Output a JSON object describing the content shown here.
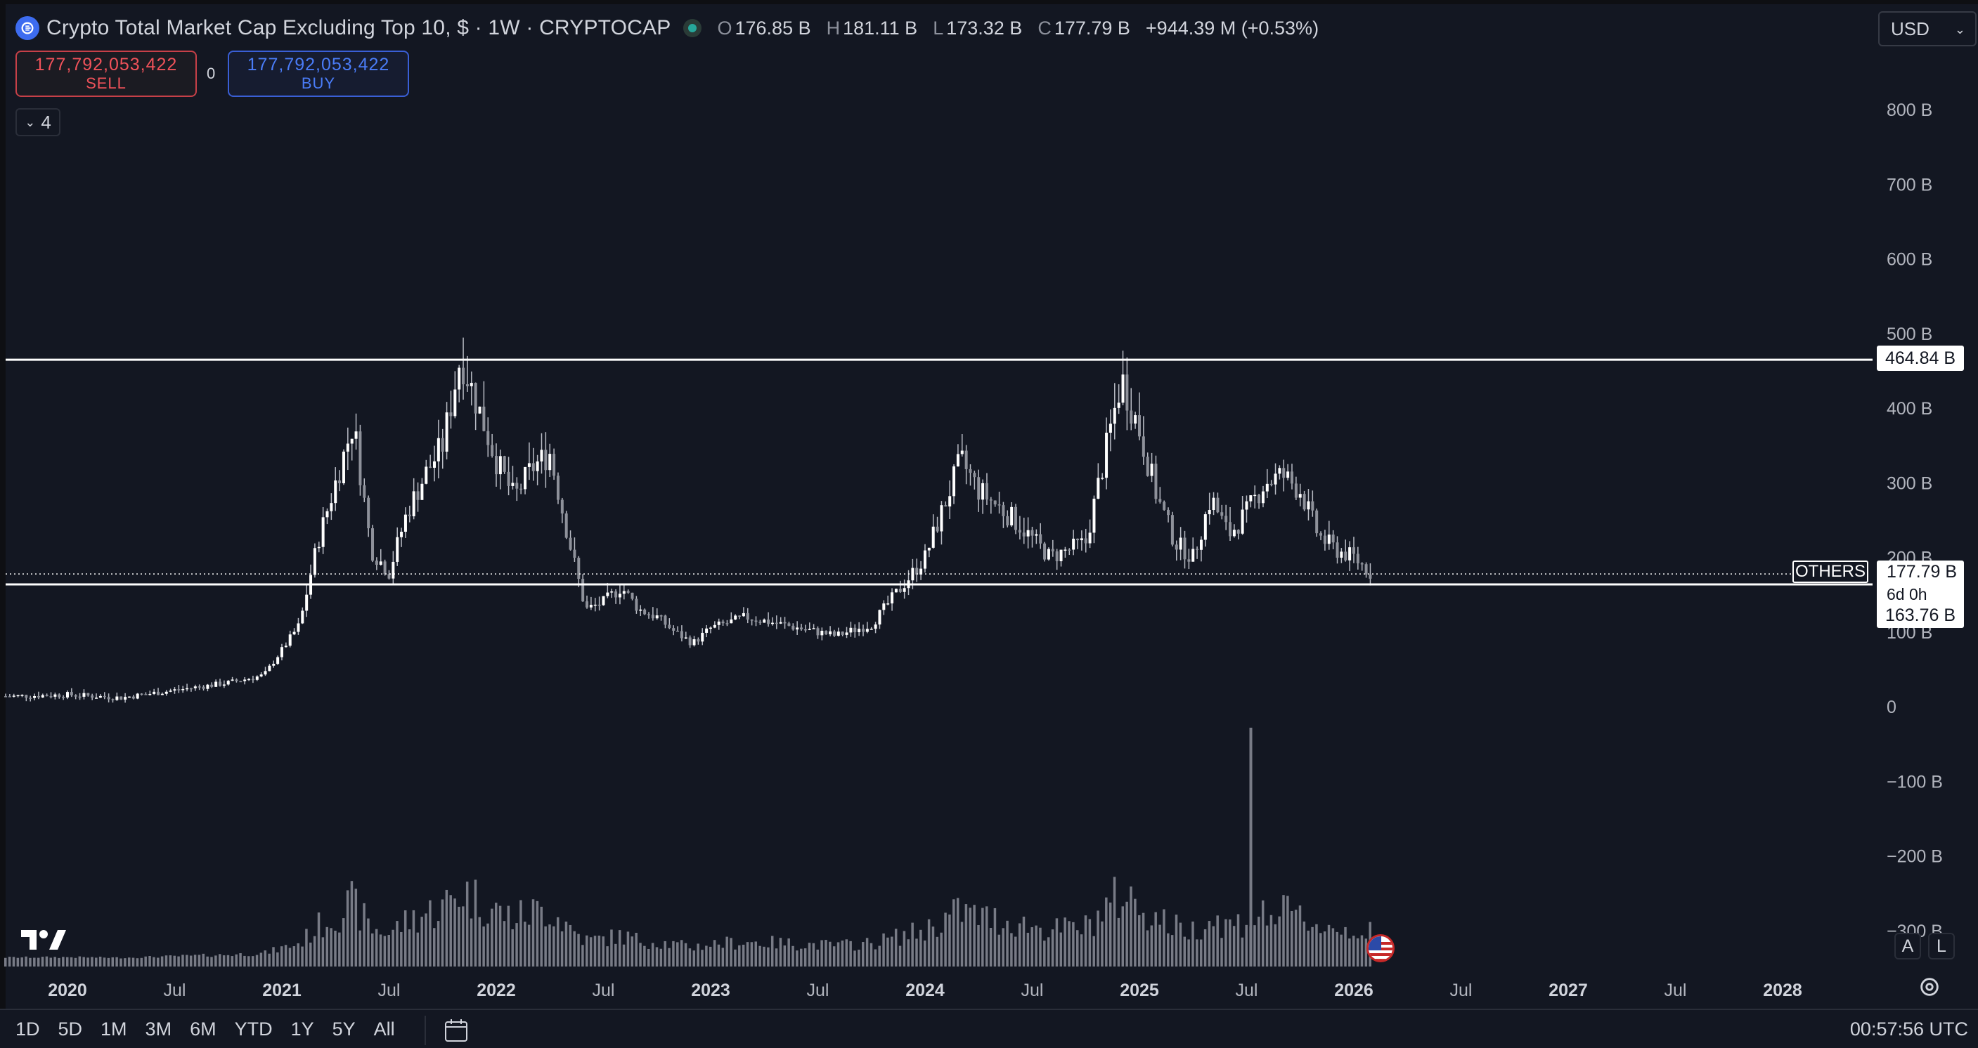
{
  "header": {
    "title": "Crypto Total Market Cap Excluding Top 10, $ · 1W · CRYPTOCAP",
    "ohlc": [
      {
        "key": "O",
        "value": "176.85 B"
      },
      {
        "key": "H",
        "value": "181.11 B"
      },
      {
        "key": "L",
        "value": "173.32 B"
      },
      {
        "key": "C",
        "value": "177.79 B"
      }
    ],
    "change": "+944.39 M (+0.53%)"
  },
  "currency": {
    "selected": "USD"
  },
  "trade": {
    "sell_price": "177,792,053,422",
    "sell_label": "SELL",
    "buy_price": "177,792,053,422",
    "buy_label": "BUY",
    "spread": "0"
  },
  "indicators": {
    "count": "4"
  },
  "price_axis": {
    "labels": [
      "800 B",
      "700 B",
      "600 B",
      "500 B",
      "400 B",
      "300 B",
      "200 B",
      "100 B",
      "0",
      "−100 B",
      "−200 B",
      "−300 B"
    ]
  },
  "time_axis": {
    "labels": [
      {
        "text": "2020",
        "major": true
      },
      {
        "text": "Jul",
        "major": false
      },
      {
        "text": "2021",
        "major": true
      },
      {
        "text": "Jul",
        "major": false
      },
      {
        "text": "2022",
        "major": true
      },
      {
        "text": "Jul",
        "major": false
      },
      {
        "text": "2023",
        "major": true
      },
      {
        "text": "Jul",
        "major": false
      },
      {
        "text": "2024",
        "major": true
      },
      {
        "text": "Jul",
        "major": false
      },
      {
        "text": "2025",
        "major": true
      },
      {
        "text": "Jul",
        "major": false
      },
      {
        "text": "2026",
        "major": true
      },
      {
        "text": "Jul",
        "major": false
      },
      {
        "text": "2027",
        "major": true
      },
      {
        "text": "Jul",
        "major": false
      },
      {
        "text": "2028",
        "major": true
      }
    ]
  },
  "badges": {
    "resistance": "464.84 B",
    "last_price": "177.79 B",
    "countdown": "6d 0h",
    "support": "163.76 B",
    "symbol": "OTHERS"
  },
  "chart_data": {
    "type": "candlestick",
    "y_unit": "B",
    "ylim": [
      -330,
      880
    ],
    "x_range": [
      "2019-10",
      "2028-04"
    ],
    "horizontal_lines": [
      464.84,
      163.76
    ],
    "last_price_line": 177.79,
    "series_close": [
      {
        "t": "2019-10",
        "v": 14
      },
      {
        "t": "2020-01",
        "v": 16
      },
      {
        "t": "2020-04",
        "v": 12
      },
      {
        "t": "2020-07",
        "v": 22
      },
      {
        "t": "2020-10",
        "v": 32
      },
      {
        "t": "2020-12",
        "v": 42
      },
      {
        "t": "2021-02",
        "v": 110
      },
      {
        "t": "2021-03",
        "v": 220
      },
      {
        "t": "2021-04",
        "v": 300
      },
      {
        "t": "2021-05",
        "v": 380
      },
      {
        "t": "2021-06",
        "v": 210
      },
      {
        "t": "2021-07",
        "v": 180
      },
      {
        "t": "2021-08",
        "v": 260
      },
      {
        "t": "2021-09",
        "v": 310
      },
      {
        "t": "2021-10",
        "v": 350
      },
      {
        "t": "2021-11",
        "v": 470
      },
      {
        "t": "2021-12",
        "v": 400
      },
      {
        "t": "2022-01",
        "v": 330
      },
      {
        "t": "2022-02",
        "v": 280
      },
      {
        "t": "2022-03",
        "v": 320
      },
      {
        "t": "2022-04",
        "v": 340
      },
      {
        "t": "2022-05",
        "v": 230
      },
      {
        "t": "2022-06",
        "v": 130
      },
      {
        "t": "2022-07",
        "v": 140
      },
      {
        "t": "2022-08",
        "v": 160
      },
      {
        "t": "2022-09",
        "v": 130
      },
      {
        "t": "2022-10",
        "v": 120
      },
      {
        "t": "2022-11",
        "v": 100
      },
      {
        "t": "2022-12",
        "v": 85
      },
      {
        "t": "2023-01",
        "v": 105
      },
      {
        "t": "2023-03",
        "v": 120
      },
      {
        "t": "2023-05",
        "v": 110
      },
      {
        "t": "2023-07",
        "v": 100
      },
      {
        "t": "2023-08",
        "v": 95
      },
      {
        "t": "2023-10",
        "v": 110
      },
      {
        "t": "2023-11",
        "v": 140
      },
      {
        "t": "2024-01",
        "v": 200
      },
      {
        "t": "2024-03",
        "v": 330
      },
      {
        "t": "2024-04",
        "v": 290
      },
      {
        "t": "2024-06",
        "v": 250
      },
      {
        "t": "2024-08",
        "v": 200
      },
      {
        "t": "2024-09",
        "v": 210
      },
      {
        "t": "2024-10",
        "v": 220
      },
      {
        "t": "2024-11",
        "v": 330
      },
      {
        "t": "2024-12",
        "v": 440
      },
      {
        "t": "2025-01",
        "v": 370
      },
      {
        "t": "2025-02",
        "v": 280
      },
      {
        "t": "2025-03",
        "v": 220
      },
      {
        "t": "2025-04",
        "v": 200
      },
      {
        "t": "2025-05",
        "v": 280
      },
      {
        "t": "2025-06",
        "v": 230
      },
      {
        "t": "2025-07",
        "v": 260
      },
      {
        "t": "2025-08",
        "v": 300
      },
      {
        "t": "2025-09",
        "v": 310
      },
      {
        "t": "2025-10",
        "v": 290
      },
      {
        "t": "2025-11",
        "v": 230
      },
      {
        "t": "2025-12",
        "v": 210
      },
      {
        "t": "2026-01",
        "v": 200
      },
      {
        "t": "2026-02",
        "v": 177.79
      }
    ]
  },
  "bottom": {
    "ranges": [
      "1D",
      "5D",
      "1M",
      "3M",
      "6M",
      "YTD",
      "1Y",
      "5Y",
      "All"
    ],
    "clock": "00:57:56 UTC",
    "scale_a": "A",
    "scale_l": "L"
  },
  "icons": {
    "logo": "cryptocap-logo-icon",
    "market_status": "market-open-dot-icon",
    "calendar": "calendar-goto-icon",
    "settings": "settings-icon",
    "flag": "us-flag-icon"
  }
}
